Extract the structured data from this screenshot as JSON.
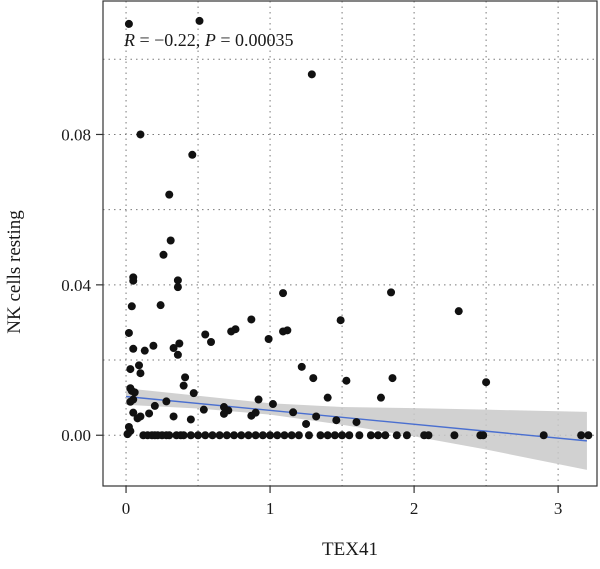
{
  "chart_data": {
    "type": "scatter",
    "annotation": {
      "r_symbol": "R",
      "r_text": " = −0.22, ",
      "p_symbol": "P",
      "p_text": " = 0.00035"
    },
    "xlabel": "TEX41",
    "ylabel": "NK cells resting",
    "xlim": [
      -0.16,
      3.27
    ],
    "ylim": [
      -0.0135,
      0.1155
    ],
    "x_ticks": [
      0,
      1,
      2,
      3
    ],
    "x_tick_labels": [
      "0",
      "1",
      "2",
      "3"
    ],
    "y_ticks": [
      0.0,
      0.04,
      0.08
    ],
    "y_tick_labels": [
      "0.00",
      "0.04",
      "0.08"
    ],
    "grid": true,
    "grid_style": "dotted",
    "colors": {
      "points": "#111111",
      "fit_line": "#4a6fd0",
      "confidence_band": "#c9c9c9",
      "grid": "#7a7a7a",
      "axis": "#333333"
    },
    "fit_line": {
      "x": [
        0.0,
        3.2
      ],
      "y": [
        0.0103,
        -0.0015
      ]
    },
    "confidence_band": {
      "x": [
        0.0,
        0.5,
        1.0,
        1.5,
        2.0,
        2.5,
        3.2
      ],
      "upper": [
        0.0125,
        0.0105,
        0.0085,
        0.0075,
        0.0072,
        0.0068,
        0.0062
      ],
      "lower": [
        0.0081,
        0.0071,
        0.0055,
        0.0028,
        -0.0003,
        -0.0038,
        -0.0092
      ]
    },
    "points": {
      "x": [
        0.02,
        0.51,
        1.29,
        0.1,
        0.46,
        0.3,
        0.31,
        0.26,
        0.05,
        0.05,
        0.36,
        0.36,
        0.04,
        0.24,
        1.09,
        1.84,
        2.31,
        0.87,
        1.49,
        0.76,
        0.73,
        1.12,
        1.09,
        0.55,
        0.02,
        0.19,
        0.59,
        0.37,
        0.05,
        0.13,
        0.33,
        0.99,
        0.36,
        0.09,
        1.22,
        0.1,
        0.41,
        1.3,
        1.53,
        0.03,
        1.85,
        2.5,
        0.4,
        0.03,
        0.04,
        0.06,
        1.4,
        1.77,
        0.47,
        0.05,
        0.92,
        0.03,
        0.28,
        0.2,
        0.68,
        1.02,
        0.05,
        0.1,
        0.33,
        0.87,
        0.16,
        0.71,
        0.54,
        0.45,
        1.16,
        0.9,
        1.32,
        0.68,
        1.46,
        1.6,
        0.08,
        1.25,
        0.02,
        0.03,
        0.01,
        0.12,
        0.15,
        0.18,
        0.2,
        0.22,
        0.25,
        0.28,
        0.3,
        0.35,
        0.38,
        0.4,
        0.45,
        0.5,
        0.55,
        0.6,
        0.65,
        0.7,
        0.75,
        0.8,
        0.85,
        0.9,
        0.95,
        1.0,
        1.05,
        1.1,
        1.15,
        1.2,
        1.27,
        1.35,
        1.4,
        1.45,
        1.5,
        1.55,
        1.62,
        1.7,
        1.75,
        1.8,
        1.88,
        1.95,
        2.07,
        2.1,
        2.28,
        2.46,
        2.48,
        2.9,
        3.16,
        3.21
      ],
      "y": [
        0.1094,
        0.1102,
        0.096,
        0.08,
        0.0746,
        0.064,
        0.0518,
        0.048,
        0.042,
        0.0411,
        0.0412,
        0.0394,
        0.0343,
        0.0346,
        0.0378,
        0.038,
        0.033,
        0.0308,
        0.0306,
        0.0282,
        0.0276,
        0.0279,
        0.0276,
        0.0268,
        0.0272,
        0.0238,
        0.0248,
        0.0244,
        0.023,
        0.0225,
        0.0232,
        0.0256,
        0.0214,
        0.0186,
        0.0182,
        0.0165,
        0.0154,
        0.0152,
        0.0145,
        0.0176,
        0.0152,
        0.0141,
        0.0132,
        0.0125,
        0.0118,
        0.0114,
        0.01,
        0.01,
        0.0112,
        0.0095,
        0.0095,
        0.0089,
        0.009,
        0.0078,
        0.0075,
        0.0083,
        0.006,
        0.005,
        0.005,
        0.0052,
        0.0058,
        0.0066,
        0.0068,
        0.0042,
        0.0061,
        0.006,
        0.005,
        0.0057,
        0.004,
        0.0035,
        0.0045,
        0.003,
        0.0022,
        0.0011,
        0.0003,
        0.0,
        0.0,
        0.0,
        0.0,
        0.0,
        0.0,
        0.0,
        0.0,
        0.0,
        0.0,
        0.0,
        0.0,
        0.0,
        0.0,
        0.0,
        0.0,
        0.0,
        0.0,
        0.0,
        0.0,
        0.0,
        0.0,
        0.0,
        0.0,
        0.0,
        0.0,
        0.0,
        0.0,
        0.0,
        0.0,
        0.0,
        0.0,
        0.0,
        0.0,
        0.0,
        0.0,
        0.0,
        0.0,
        0.0,
        0.0,
        0.0,
        0.0,
        0.0,
        0.0,
        0.0,
        0.0,
        0.0
      ]
    }
  }
}
